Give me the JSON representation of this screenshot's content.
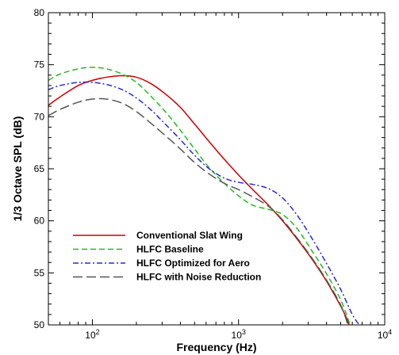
{
  "chart_data": {
    "type": "line",
    "xlabel": "Frequency (Hz)",
    "ylabel": "1/3 Octave SPL (dB)",
    "xscale": "log",
    "xlim": [
      50,
      10000
    ],
    "ylim": [
      50,
      80
    ],
    "grid": false,
    "legend_position": "bottom-left",
    "x_ticks": [
      {
        "value": 100,
        "base": "10",
        "exp": "2"
      },
      {
        "value": 1000,
        "base": "10",
        "exp": "3"
      },
      {
        "value": 10000,
        "base": "10",
        "exp": "4"
      }
    ],
    "y_ticks": [
      {
        "value": 50,
        "label": "50"
      },
      {
        "value": 55,
        "label": "55"
      },
      {
        "value": 60,
        "label": "60"
      },
      {
        "value": 65,
        "label": "65"
      },
      {
        "value": 70,
        "label": "70"
      },
      {
        "value": 75,
        "label": "75"
      },
      {
        "value": 80,
        "label": "80"
      }
    ],
    "series": [
      {
        "name": "Conventional Slat Wing",
        "color": "#cc0000",
        "dash": "solid",
        "points": [
          [
            50,
            71.1
          ],
          [
            60,
            71.9
          ],
          [
            80,
            73.0
          ],
          [
            100,
            73.5
          ],
          [
            125,
            73.8
          ],
          [
            160,
            73.95
          ],
          [
            200,
            73.8
          ],
          [
            250,
            73.2
          ],
          [
            315,
            72.2
          ],
          [
            400,
            70.9
          ],
          [
            500,
            69.3
          ],
          [
            630,
            67.6
          ],
          [
            800,
            65.9
          ],
          [
            1000,
            64.4
          ],
          [
            1250,
            63.0
          ],
          [
            1600,
            61.5
          ],
          [
            2000,
            60.0
          ],
          [
            2500,
            58.3
          ],
          [
            3150,
            56.4
          ],
          [
            4000,
            54.2
          ],
          [
            5000,
            51.8
          ],
          [
            5500,
            50.6
          ],
          [
            5700,
            50.0
          ]
        ]
      },
      {
        "name": "HLFC Baseline",
        "color": "#22bb22",
        "dash": "dashed",
        "points": [
          [
            50,
            73.5
          ],
          [
            60,
            74.1
          ],
          [
            80,
            74.6
          ],
          [
            100,
            74.75
          ],
          [
            125,
            74.6
          ],
          [
            160,
            74.1
          ],
          [
            200,
            73.3
          ],
          [
            250,
            72.0
          ],
          [
            315,
            70.5
          ],
          [
            400,
            68.7
          ],
          [
            500,
            66.9
          ],
          [
            630,
            65.1
          ],
          [
            800,
            63.6
          ],
          [
            1000,
            62.4
          ],
          [
            1250,
            61.5
          ],
          [
            1600,
            61.1
          ],
          [
            2000,
            60.6
          ],
          [
            2500,
            59.3
          ],
          [
            3150,
            57.2
          ],
          [
            4000,
            54.9
          ],
          [
            5000,
            52.4
          ],
          [
            5800,
            50.0
          ]
        ]
      },
      {
        "name": "HLFC Optimized for Aero",
        "color": "#2a2ad0",
        "dash": "dashdot",
        "points": [
          [
            50,
            72.6
          ],
          [
            60,
            73.0
          ],
          [
            80,
            73.3
          ],
          [
            100,
            73.3
          ],
          [
            125,
            73.1
          ],
          [
            160,
            72.6
          ],
          [
            200,
            71.8
          ],
          [
            250,
            70.7
          ],
          [
            315,
            69.3
          ],
          [
            400,
            67.8
          ],
          [
            500,
            66.3
          ],
          [
            630,
            65.0
          ],
          [
            800,
            64.1
          ],
          [
            1000,
            63.7
          ],
          [
            1250,
            63.5
          ],
          [
            1600,
            63.1
          ],
          [
            2000,
            62.2
          ],
          [
            2500,
            60.6
          ],
          [
            3150,
            58.4
          ],
          [
            4000,
            55.9
          ],
          [
            5000,
            53.4
          ],
          [
            6000,
            51.0
          ],
          [
            6700,
            50.0
          ]
        ]
      },
      {
        "name": "HLFC with Noise Reduction",
        "color": "#555555",
        "dash": "longdash",
        "points": [
          [
            50,
            70.1
          ],
          [
            60,
            70.7
          ],
          [
            80,
            71.4
          ],
          [
            100,
            71.7
          ],
          [
            125,
            71.7
          ],
          [
            160,
            71.3
          ],
          [
            200,
            70.5
          ],
          [
            250,
            69.4
          ],
          [
            315,
            68.2
          ],
          [
            400,
            66.9
          ],
          [
            500,
            65.6
          ],
          [
            630,
            64.5
          ],
          [
            800,
            63.6
          ],
          [
            1000,
            63.0
          ],
          [
            1250,
            62.3
          ],
          [
            1600,
            61.4
          ],
          [
            2000,
            60.1
          ],
          [
            2500,
            58.4
          ],
          [
            3150,
            56.5
          ],
          [
            4000,
            54.3
          ],
          [
            5000,
            51.9
          ],
          [
            5600,
            50.0
          ]
        ]
      }
    ]
  }
}
